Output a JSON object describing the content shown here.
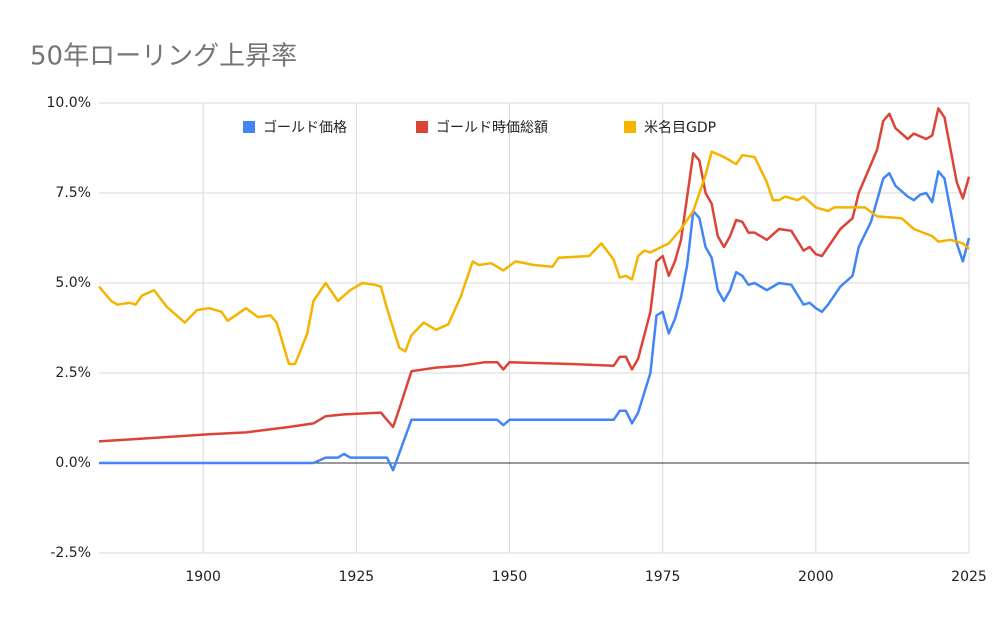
{
  "chart_data": {
    "type": "line",
    "title": "50年ローリング上昇率",
    "xlim": [
      1883,
      2025
    ],
    "xticks": [
      1900,
      1925,
      1950,
      1975,
      2000,
      2025
    ],
    "ylim": [
      -2.5,
      10
    ],
    "yticks": [
      {
        "value": -2.5,
        "label": "-2.5%"
      },
      {
        "value": 0,
        "label": "0.0%"
      },
      {
        "value": 2.5,
        "label": "2.5%"
      },
      {
        "value": 5,
        "label": "5.0%"
      },
      {
        "value": 7.5,
        "label": "7.5%"
      },
      {
        "value": 10,
        "label": "10.0%"
      }
    ],
    "grid": true,
    "legend": "top",
    "series": [
      {
        "name": "ゴールド価格",
        "color": "#4285f4",
        "x": [
          1883,
          1900,
          1918,
          1920,
          1922,
          1923,
          1924,
          1930,
          1931,
          1934,
          1948,
          1949,
          1950,
          1967,
          1968,
          1969,
          1970,
          1971,
          1973,
          1974,
          1975,
          1976,
          1977,
          1978,
          1979,
          1980,
          1981,
          1982,
          1983,
          1984,
          1985,
          1986,
          1987,
          1988,
          1989,
          1990,
          1992,
          1994,
          1996,
          1998,
          1999,
          2000,
          2001,
          2002,
          2004,
          2006,
          2007,
          2009,
          2010,
          2011,
          2012,
          2013,
          2015,
          2016,
          2017,
          2018,
          2019,
          2020,
          2021,
          2022,
          2023,
          2024,
          2025
        ],
        "values": [
          0,
          0,
          0,
          0.15,
          0.15,
          0.25,
          0.15,
          0.15,
          -0.2,
          1.2,
          1.2,
          1.05,
          1.2,
          1.2,
          1.45,
          1.45,
          1.1,
          1.4,
          2.5,
          4.1,
          4.2,
          3.6,
          4.0,
          4.6,
          5.5,
          7.0,
          6.8,
          6.0,
          5.7,
          4.8,
          4.5,
          4.8,
          5.3,
          5.2,
          4.95,
          5.0,
          4.8,
          5.0,
          4.95,
          4.4,
          4.45,
          4.3,
          4.2,
          4.4,
          4.9,
          5.2,
          6.0,
          6.7,
          7.3,
          7.9,
          8.05,
          7.7,
          7.4,
          7.3,
          7.45,
          7.5,
          7.25,
          8.1,
          7.9,
          7.0,
          6.1,
          5.6,
          6.25
        ]
      },
      {
        "name": "ゴールド時価総額",
        "color": "#db4437",
        "x": [
          1883,
          1901,
          1907,
          1914,
          1918,
          1920,
          1923,
          1929,
          1931,
          1932,
          1934,
          1938,
          1942,
          1946,
          1948,
          1949,
          1950,
          1960,
          1967,
          1968,
          1969,
          1970,
          1971,
          1973,
          1974,
          1975,
          1976,
          1977,
          1978,
          1979,
          1980,
          1981,
          1982,
          1983,
          1984,
          1985,
          1986,
          1987,
          1988,
          1989,
          1990,
          1992,
          1994,
          1996,
          1998,
          1999,
          2000,
          2001,
          2002,
          2004,
          2006,
          2007,
          2009,
          2010,
          2011,
          2012,
          2013,
          2015,
          2016,
          2018,
          2019,
          2020,
          2021,
          2022,
          2023,
          2024,
          2025
        ],
        "values": [
          0.6,
          0.8,
          0.85,
          1.0,
          1.1,
          1.3,
          1.35,
          1.4,
          1.0,
          1.5,
          2.55,
          2.65,
          2.7,
          2.8,
          2.8,
          2.6,
          2.8,
          2.75,
          2.7,
          2.95,
          2.95,
          2.6,
          2.9,
          4.2,
          5.6,
          5.75,
          5.2,
          5.6,
          6.2,
          7.4,
          8.6,
          8.4,
          7.5,
          7.2,
          6.3,
          6.0,
          6.3,
          6.75,
          6.7,
          6.4,
          6.4,
          6.2,
          6.5,
          6.45,
          5.9,
          6.0,
          5.8,
          5.75,
          6.0,
          6.5,
          6.8,
          7.5,
          8.3,
          8.7,
          9.5,
          9.7,
          9.3,
          9.0,
          9.15,
          9.0,
          9.1,
          9.85,
          9.6,
          8.7,
          7.8,
          7.35,
          7.95
        ]
      },
      {
        "name": "米名目GDP",
        "color": "#f4b400",
        "x": [
          1883,
          1885,
          1886,
          1888,
          1889,
          1890,
          1892,
          1894,
          1897,
          1899,
          1901,
          1903,
          1904,
          1907,
          1909,
          1911,
          1912,
          1914,
          1915,
          1917,
          1918,
          1920,
          1922,
          1924,
          1926,
          1928,
          1929,
          1930,
          1932,
          1933,
          1934,
          1936,
          1938,
          1940,
          1942,
          1944,
          1945,
          1947,
          1949,
          1951,
          1954,
          1957,
          1958,
          1963,
          1965,
          1967,
          1968,
          1969,
          1970,
          1971,
          1972,
          1973,
          1976,
          1978,
          1980,
          1982,
          1983,
          1985,
          1987,
          1988,
          1990,
          1992,
          1993,
          1994,
          1995,
          1997,
          1998,
          2000,
          2002,
          2003,
          2008,
          2010,
          2014,
          2016,
          2019,
          2020,
          2022,
          2024,
          2025
        ],
        "values": [
          4.9,
          4.5,
          4.4,
          4.45,
          4.4,
          4.65,
          4.8,
          4.35,
          3.9,
          4.25,
          4.3,
          4.2,
          3.95,
          4.3,
          4.05,
          4.1,
          3.9,
          2.75,
          2.75,
          3.6,
          4.5,
          5.0,
          4.5,
          4.8,
          5.0,
          4.95,
          4.9,
          4.3,
          3.2,
          3.1,
          3.55,
          3.9,
          3.7,
          3.85,
          4.6,
          5.6,
          5.5,
          5.55,
          5.35,
          5.6,
          5.5,
          5.45,
          5.7,
          5.75,
          6.1,
          5.65,
          5.15,
          5.2,
          5.1,
          5.75,
          5.9,
          5.85,
          6.1,
          6.5,
          7.0,
          8.0,
          8.65,
          8.5,
          8.3,
          8.55,
          8.5,
          7.8,
          7.3,
          7.3,
          7.4,
          7.3,
          7.4,
          7.1,
          7.0,
          7.1,
          7.1,
          6.85,
          6.8,
          6.5,
          6.3,
          6.15,
          6.2,
          6.1,
          5.95
        ]
      }
    ]
  }
}
